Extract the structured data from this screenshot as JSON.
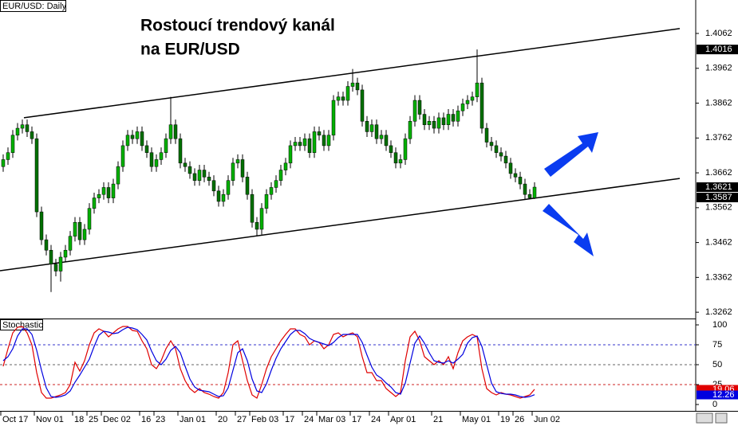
{
  "chart_data": [
    {
      "type": "candlestick",
      "label": "EUR/USD: Daily",
      "title_lines": [
        "Rostoucí trendový kanál",
        "na EUR/USD"
      ],
      "up_color": "#00b000",
      "down_color": "#007000",
      "channel_color": "#000000",
      "ylim": [
        1.3244,
        1.4158
      ],
      "yticks": [
        1.3262,
        1.3362,
        1.3462,
        1.3562,
        1.3662,
        1.3762,
        1.3862,
        1.3962,
        1.4062
      ],
      "categories": [
        "Oct 17",
        null,
        null,
        null,
        null,
        null,
        null,
        "Nov 01",
        null,
        null,
        null,
        null,
        null,
        null,
        null,
        "18",
        null,
        null,
        "25",
        null,
        null,
        "Dec 02",
        null,
        null,
        null,
        null,
        null,
        null,
        null,
        "16",
        null,
        null,
        "23",
        null,
        null,
        null,
        null,
        "Jan 01",
        null,
        null,
        null,
        null,
        null,
        null,
        null,
        "20",
        null,
        null,
        null,
        "27",
        null,
        null,
        "Feb 03",
        null,
        null,
        null,
        null,
        null,
        null,
        "17",
        null,
        null,
        null,
        "24",
        null,
        null,
        "Mar 03",
        null,
        null,
        null,
        null,
        null,
        null,
        "17",
        null,
        null,
        null,
        "24",
        null,
        null,
        null,
        "Apr 01",
        null,
        null,
        null,
        null,
        null,
        null,
        null,
        null,
        "21",
        null,
        null,
        null,
        null,
        null,
        "May 01",
        null,
        null,
        null,
        null,
        null,
        null,
        null,
        "19",
        null,
        null,
        "26",
        null,
        null,
        null,
        "Jun 02"
      ],
      "ohlc": [
        [
          1.368,
          1.3715,
          1.3665,
          1.37
        ],
        [
          1.37,
          1.3735,
          1.3685,
          1.372
        ],
        [
          1.372,
          1.3785,
          1.3705,
          1.377
        ],
        [
          1.377,
          1.3805,
          1.3755,
          1.379
        ],
        [
          1.379,
          1.3815,
          1.3775,
          1.38
        ],
        [
          1.38,
          1.3815,
          1.3765,
          1.378
        ],
        [
          1.378,
          1.3795,
          1.3745,
          1.376
        ],
        [
          1.376,
          1.3775,
          1.3535,
          1.355
        ],
        [
          1.355,
          1.3565,
          1.3455,
          1.347
        ],
        [
          1.347,
          1.3485,
          1.3425,
          1.344
        ],
        [
          1.344,
          1.3455,
          1.332,
          1.34
        ],
        [
          1.34,
          1.3415,
          1.3365,
          1.338
        ],
        [
          1.338,
          1.3435,
          1.335,
          1.342
        ],
        [
          1.342,
          1.3455,
          1.3405,
          1.344
        ],
        [
          1.344,
          1.3495,
          1.3425,
          1.348
        ],
        [
          1.348,
          1.3535,
          1.3465,
          1.352
        ],
        [
          1.352,
          1.3535,
          1.3455,
          1.347
        ],
        [
          1.347,
          1.3515,
          1.3455,
          1.35
        ],
        [
          1.35,
          1.3575,
          1.3485,
          1.356
        ],
        [
          1.356,
          1.3605,
          1.3545,
          1.359
        ],
        [
          1.359,
          1.3615,
          1.3575,
          1.36
        ],
        [
          1.36,
          1.3635,
          1.3585,
          1.362
        ],
        [
          1.362,
          1.3635,
          1.3575,
          1.359
        ],
        [
          1.359,
          1.3645,
          1.3575,
          1.363
        ],
        [
          1.363,
          1.3695,
          1.3615,
          1.368
        ],
        [
          1.368,
          1.3755,
          1.3665,
          1.374
        ],
        [
          1.374,
          1.3785,
          1.3725,
          1.377
        ],
        [
          1.377,
          1.3785,
          1.3745,
          1.376
        ],
        [
          1.376,
          1.3795,
          1.3745,
          1.378
        ],
        [
          1.378,
          1.3795,
          1.3725,
          1.374
        ],
        [
          1.374,
          1.3755,
          1.3705,
          1.372
        ],
        [
          1.372,
          1.3735,
          1.3665,
          1.368
        ],
        [
          1.368,
          1.3715,
          1.3665,
          1.37
        ],
        [
          1.37,
          1.3735,
          1.3685,
          1.372
        ],
        [
          1.372,
          1.3775,
          1.3705,
          1.376
        ],
        [
          1.376,
          1.388,
          1.3745,
          1.38
        ],
        [
          1.38,
          1.3815,
          1.3745,
          1.376
        ],
        [
          1.376,
          1.3775,
          1.3675,
          1.369
        ],
        [
          1.369,
          1.3705,
          1.3665,
          1.368
        ],
        [
          1.368,
          1.3695,
          1.3645,
          1.366
        ],
        [
          1.366,
          1.3675,
          1.3625,
          1.364
        ],
        [
          1.364,
          1.3685,
          1.3625,
          1.367
        ],
        [
          1.367,
          1.3685,
          1.3635,
          1.365
        ],
        [
          1.365,
          1.3665,
          1.3625,
          1.364
        ],
        [
          1.364,
          1.3655,
          1.3595,
          1.361
        ],
        [
          1.361,
          1.3625,
          1.3565,
          1.358
        ],
        [
          1.358,
          1.3615,
          1.3565,
          1.36
        ],
        [
          1.36,
          1.3655,
          1.3585,
          1.364
        ],
        [
          1.364,
          1.3705,
          1.3625,
          1.369
        ],
        [
          1.369,
          1.3715,
          1.3675,
          1.37
        ],
        [
          1.37,
          1.3715,
          1.3635,
          1.365
        ],
        [
          1.365,
          1.3665,
          1.3585,
          1.36
        ],
        [
          1.36,
          1.3615,
          1.3505,
          1.352
        ],
        [
          1.352,
          1.3535,
          1.348,
          1.35
        ],
        [
          1.35,
          1.3575,
          1.3485,
          1.356
        ],
        [
          1.356,
          1.3615,
          1.3545,
          1.36
        ],
        [
          1.36,
          1.3635,
          1.3585,
          1.362
        ],
        [
          1.362,
          1.3655,
          1.3605,
          1.364
        ],
        [
          1.364,
          1.3685,
          1.3625,
          1.367
        ],
        [
          1.367,
          1.3705,
          1.3655,
          1.369
        ],
        [
          1.369,
          1.3755,
          1.3675,
          1.374
        ],
        [
          1.374,
          1.3765,
          1.3725,
          1.375
        ],
        [
          1.375,
          1.3765,
          1.3725,
          1.374
        ],
        [
          1.374,
          1.3775,
          1.3725,
          1.376
        ],
        [
          1.376,
          1.3775,
          1.3705,
          1.372
        ],
        [
          1.372,
          1.3795,
          1.3705,
          1.378
        ],
        [
          1.378,
          1.3795,
          1.3755,
          1.377
        ],
        [
          1.377,
          1.3785,
          1.3725,
          1.374
        ],
        [
          1.374,
          1.3785,
          1.3725,
          1.377
        ],
        [
          1.377,
          1.3885,
          1.3755,
          1.387
        ],
        [
          1.387,
          1.3895,
          1.3855,
          1.388
        ],
        [
          1.388,
          1.3895,
          1.3855,
          1.387
        ],
        [
          1.387,
          1.3925,
          1.3855,
          1.391
        ],
        [
          1.391,
          1.396,
          1.3895,
          1.392
        ],
        [
          1.392,
          1.3935,
          1.3885,
          1.39
        ],
        [
          1.39,
          1.3915,
          1.3795,
          1.381
        ],
        [
          1.381,
          1.3825,
          1.3765,
          1.378
        ],
        [
          1.378,
          1.3815,
          1.3765,
          1.38
        ],
        [
          1.38,
          1.3815,
          1.3745,
          1.376
        ],
        [
          1.376,
          1.3785,
          1.3745,
          1.377
        ],
        [
          1.377,
          1.3785,
          1.3725,
          1.374
        ],
        [
          1.374,
          1.3755,
          1.3705,
          1.372
        ],
        [
          1.372,
          1.3735,
          1.3675,
          1.369
        ],
        [
          1.369,
          1.3715,
          1.3675,
          1.37
        ],
        [
          1.37,
          1.3775,
          1.3685,
          1.376
        ],
        [
          1.376,
          1.3825,
          1.3745,
          1.381
        ],
        [
          1.381,
          1.3885,
          1.3795,
          1.387
        ],
        [
          1.387,
          1.3885,
          1.3815,
          1.383
        ],
        [
          1.383,
          1.3845,
          1.3785,
          1.38
        ],
        [
          1.38,
          1.3825,
          1.3785,
          1.381
        ],
        [
          1.381,
          1.3825,
          1.3775,
          1.379
        ],
        [
          1.379,
          1.3835,
          1.3775,
          1.382
        ],
        [
          1.382,
          1.3835,
          1.3785,
          1.38
        ],
        [
          1.38,
          1.3845,
          1.3785,
          1.383
        ],
        [
          1.383,
          1.3845,
          1.3795,
          1.381
        ],
        [
          1.381,
          1.3855,
          1.3795,
          1.384
        ],
        [
          1.384,
          1.3875,
          1.3825,
          1.386
        ],
        [
          1.386,
          1.3885,
          1.3845,
          1.387
        ],
        [
          1.387,
          1.3895,
          1.3855,
          1.388
        ],
        [
          1.388,
          1.4016,
          1.3865,
          1.392
        ],
        [
          1.392,
          1.3935,
          1.3775,
          1.379
        ],
        [
          1.379,
          1.3805,
          1.3735,
          1.375
        ],
        [
          1.375,
          1.3765,
          1.3725,
          1.374
        ],
        [
          1.374,
          1.3755,
          1.3705,
          1.372
        ],
        [
          1.372,
          1.3735,
          1.3695,
          1.371
        ],
        [
          1.371,
          1.3725,
          1.3675,
          1.369
        ],
        [
          1.369,
          1.3705,
          1.3645,
          1.366
        ],
        [
          1.366,
          1.3675,
          1.3635,
          1.365
        ],
        [
          1.365,
          1.3665,
          1.3615,
          1.363
        ],
        [
          1.363,
          1.3645,
          1.3585,
          1.36
        ],
        [
          1.36,
          1.3615,
          1.3587,
          1.359
        ],
        [
          1.359,
          1.3635,
          1.3587,
          1.3621
        ]
      ],
      "channel": [
        {
          "x": [
            4.33,
            141.33
          ],
          "y": [
            1.382,
            1.4076
          ]
        },
        {
          "x": [
            -0.67,
            141.33
          ],
          "y": [
            1.3381,
            1.3646
          ]
        }
      ]
    },
    {
      "type": "line",
      "label": "Stochastic",
      "ylim": [
        -7,
        107
      ],
      "yticks": [
        0,
        25,
        50,
        75,
        100
      ],
      "levels": [
        {
          "value": 75,
          "color": "#3333cc"
        },
        {
          "value": 50,
          "color": "#666666"
        },
        {
          "value": 25,
          "color": "#cc2222"
        }
      ],
      "series": [
        {
          "color": "#e00000",
          "values": [
            48,
            70,
            90,
            97,
            98,
            90,
            75,
            40,
            15,
            8,
            8,
            10,
            12,
            15,
            25,
            53,
            42,
            55,
            75,
            90,
            95,
            92,
            85,
            90,
            95,
            98,
            98,
            93,
            92,
            80,
            70,
            50,
            45,
            55,
            70,
            80,
            70,
            45,
            30,
            20,
            15,
            20,
            15,
            13,
            10,
            8,
            15,
            40,
            75,
            80,
            55,
            30,
            12,
            8,
            25,
            45,
            60,
            70,
            80,
            88,
            95,
            95,
            88,
            85,
            75,
            80,
            78,
            70,
            75,
            88,
            90,
            85,
            88,
            90,
            85,
            60,
            40,
            40,
            30,
            30,
            20,
            15,
            10,
            15,
            55,
            85,
            92,
            80,
            60,
            55,
            50,
            55,
            50,
            60,
            45,
            65,
            80,
            85,
            88,
            85,
            45,
            20,
            15,
            12,
            15,
            13,
            12,
            10,
            8,
            10,
            12,
            19.06
          ]
        },
        {
          "color": "#0000e0",
          "values": [
            55,
            60,
            70,
            86,
            95,
            95,
            88,
            68,
            43,
            21,
            10,
            9,
            10,
            12,
            17,
            28,
            37,
            47,
            57,
            73,
            87,
            92,
            91,
            89,
            90,
            94,
            97,
            96,
            94,
            88,
            81,
            67,
            55,
            50,
            57,
            68,
            73,
            65,
            48,
            32,
            22,
            18,
            17,
            16,
            13,
            10,
            11,
            21,
            43,
            65,
            70,
            55,
            32,
            17,
            15,
            26,
            43,
            58,
            70,
            79,
            88,
            93,
            93,
            89,
            83,
            80,
            78,
            76,
            74,
            78,
            84,
            88,
            88,
            88,
            88,
            78,
            62,
            47,
            37,
            33,
            27,
            22,
            15,
            13,
            27,
            52,
            77,
            86,
            77,
            65,
            55,
            53,
            52,
            55,
            52,
            57,
            63,
            77,
            84,
            86,
            73,
            50,
            27,
            16,
            14,
            13,
            13,
            12,
            10,
            9,
            10,
            12.26
          ]
        }
      ]
    }
  ]
}
